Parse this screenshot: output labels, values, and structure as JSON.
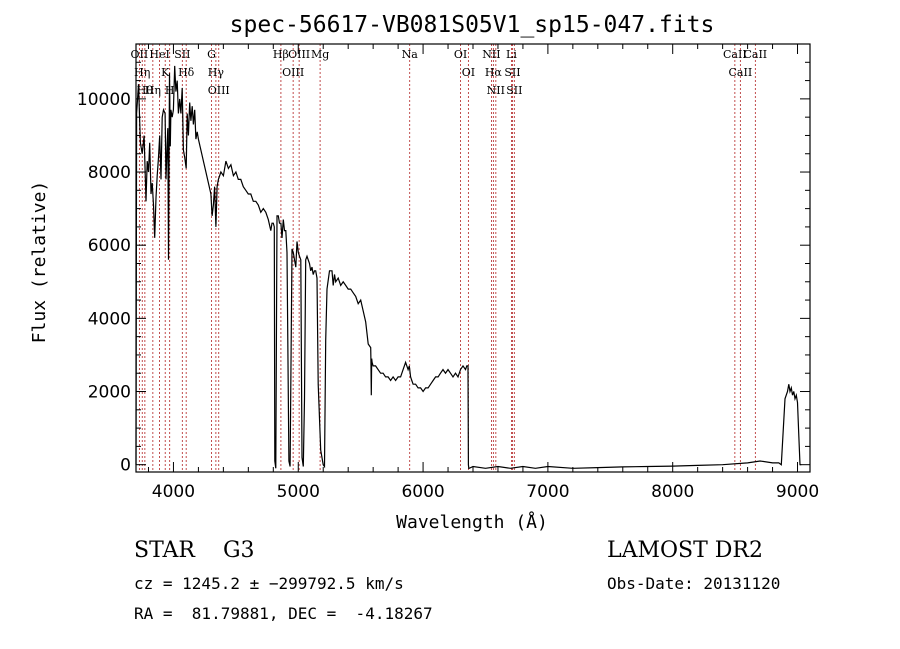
{
  "chart_data": {
    "type": "line",
    "title": "spec-56617-VB081S05V1_sp15-047.fits",
    "xlabel": "Wavelength (Å)",
    "ylabel": "Flux (relative)",
    "xlim": [
      3700,
      9100
    ],
    "ylim": [
      -200,
      11500
    ],
    "x_ticks": [
      4000,
      5000,
      6000,
      7000,
      8000,
      9000
    ],
    "y_ticks": [
      0,
      2000,
      4000,
      6000,
      8000,
      10000
    ],
    "grid": false,
    "series": [
      {
        "x": [
          3700,
          3705,
          3720,
          3735,
          3750,
          3765,
          3780,
          3790,
          3800,
          3810,
          3820,
          3830,
          3840,
          3850,
          3860,
          3870,
          3880,
          3890,
          3900,
          3910,
          3920,
          3933,
          3940,
          3950,
          3955,
          3960,
          3968,
          3975,
          3980,
          3990,
          4000,
          4010,
          4020,
          4030,
          4040,
          4050,
          4060,
          4070,
          4080,
          4090,
          4102,
          4110,
          4120,
          4130,
          4140,
          4150,
          4160,
          4170,
          4180,
          4190,
          4200,
          4220,
          4240,
          4260,
          4280,
          4300,
          4310,
          4320,
          4330,
          4340,
          4350,
          4360,
          4380,
          4400,
          4420,
          4440,
          4460,
          4480,
          4500,
          4520,
          4540,
          4560,
          4580,
          4600,
          4620,
          4640,
          4660,
          4680,
          4700,
          4720,
          4740,
          4760,
          4780,
          4790,
          4800,
          4808,
          4812,
          4820,
          4830,
          4840,
          4850,
          4861,
          4870,
          4880,
          4890,
          4900,
          4910,
          4925,
          4935,
          4950,
          4960,
          4970,
          4980,
          4990,
          5000,
          5010,
          5020,
          5030,
          5040,
          5050,
          5060,
          5070,
          5080,
          5090,
          5100,
          5110,
          5120,
          5130,
          5140,
          5150,
          5160,
          5180,
          5200,
          5210,
          5220,
          5230,
          5250,
          5270,
          5280,
          5290,
          5300,
          5320,
          5340,
          5360,
          5380,
          5400,
          5420,
          5440,
          5460,
          5480,
          5500,
          5520,
          5540,
          5560,
          5580,
          5582,
          5585,
          5588,
          5592,
          5600,
          5620,
          5640,
          5660,
          5680,
          5700,
          5720,
          5740,
          5760,
          5780,
          5800,
          5820,
          5840,
          5860,
          5880,
          5890,
          5900,
          5910,
          5920,
          5940,
          5960,
          5980,
          6000,
          6020,
          6040,
          6060,
          6080,
          6100,
          6120,
          6140,
          6160,
          6180,
          6200,
          6220,
          6240,
          6260,
          6280,
          6300,
          6320,
          6340,
          6350,
          6360,
          6363,
          6366,
          6370,
          6400,
          6500,
          6600,
          6700,
          6800,
          6900,
          7000,
          7200,
          7400,
          7600,
          7800,
          8000,
          8200,
          8400,
          8600,
          8700,
          8800,
          8850,
          8870,
          8900,
          8920,
          8930,
          8940,
          8950,
          8960,
          8970,
          8980,
          8990,
          9000,
          9010,
          9020,
          9030
        ],
        "y": [
          0,
          9600,
          10400,
          8800,
          8500,
          9000,
          7200,
          8300,
          8000,
          8800,
          7400,
          7700,
          7100,
          6200,
          7300,
          7900,
          8400,
          9000,
          7800,
          9500,
          9700,
          9600,
          7800,
          8800,
          9200,
          5600,
          10700,
          8700,
          9700,
          9500,
          9700,
          10900,
          10200,
          10500,
          9600,
          10000,
          9600,
          10300,
          8600,
          8400,
          8100,
          9600,
          9000,
          9900,
          9400,
          9800,
          9300,
          9700,
          8900,
          9100,
          8900,
          8600,
          8300,
          8000,
          7700,
          7400,
          6800,
          7100,
          7600,
          6500,
          7600,
          7800,
          8000,
          7900,
          8300,
          8100,
          8200,
          7900,
          8000,
          7800,
          7800,
          7600,
          7500,
          7400,
          7400,
          7200,
          7200,
          7100,
          6900,
          7000,
          6900,
          6700,
          6400,
          6600,
          6600,
          6500,
          100,
          -100,
          6800,
          6800,
          6600,
          6600,
          6200,
          6700,
          6400,
          6400,
          5800,
          100,
          -50,
          5900,
          5800,
          5600,
          5400,
          6100,
          5800,
          5700,
          5600,
          200,
          -50,
          1800,
          5600,
          5700,
          5600,
          5500,
          5300,
          5400,
          5200,
          5300,
          5300,
          5100,
          2200,
          400,
          0,
          -50,
          3400,
          4800,
          5300,
          5300,
          4900,
          5200,
          5000,
          5100,
          4900,
          5000,
          4900,
          4800,
          4800,
          4700,
          4600,
          4400,
          4500,
          4200,
          3900,
          3300,
          3200,
          2900,
          1900,
          2900,
          2800,
          2700,
          2700,
          2600,
          2500,
          2500,
          2400,
          2400,
          2300,
          2400,
          2300,
          2400,
          2400,
          2600,
          2800,
          2600,
          2700,
          2400,
          2300,
          2200,
          2200,
          2100,
          2100,
          2000,
          2100,
          2100,
          2200,
          2300,
          2400,
          2400,
          2500,
          2600,
          2500,
          2600,
          2500,
          2400,
          2500,
          2400,
          2600,
          2700,
          2600,
          2700,
          2700,
          0,
          -100,
          -100,
          -50,
          -100,
          -50,
          -100,
          -50,
          -100,
          -50,
          -100,
          -80,
          -60,
          -50,
          -40,
          -20,
          0,
          50,
          100,
          50,
          50,
          0,
          1800,
          2000,
          2200,
          2000,
          2100,
          1900,
          2000,
          1800,
          1900,
          1700,
          800,
          0,
          0
        ]
      }
    ],
    "line_markers": [
      {
        "wave": 3727,
        "label": "OII"
      },
      {
        "wave": 3750,
        "label": "Hη"
      },
      {
        "wave": 3771,
        "label": "Hθ"
      },
      {
        "wave": 3835,
        "label": "Hη"
      },
      {
        "wave": 3889,
        "label": "HeI"
      },
      {
        "wave": 3934,
        "label": "K"
      },
      {
        "wave": 3970,
        "label": "H"
      },
      {
        "wave": 4071,
        "label": "SII"
      },
      {
        "wave": 4102,
        "label": "Hδ"
      },
      {
        "wave": 4305,
        "label": "G"
      },
      {
        "wave": 4340,
        "label": "Hγ"
      },
      {
        "wave": 4363,
        "label": "OIII"
      },
      {
        "wave": 4861,
        "label": "Hβ"
      },
      {
        "wave": 4959,
        "label": "OIII"
      },
      {
        "wave": 5007,
        "label": "OIII"
      },
      {
        "wave": 5175,
        "label": "Mg"
      },
      {
        "wave": 5893,
        "label": "Na"
      },
      {
        "wave": 6300,
        "label": "OI"
      },
      {
        "wave": 6363,
        "label": "OI"
      },
      {
        "wave": 6548,
        "label": "NII"
      },
      {
        "wave": 6563,
        "label": "Hα"
      },
      {
        "wave": 6583,
        "label": "NII"
      },
      {
        "wave": 6708,
        "label": "Li"
      },
      {
        "wave": 6716,
        "label": "SII"
      },
      {
        "wave": 6731,
        "label": "SII"
      },
      {
        "wave": 8498,
        "label": "CaII"
      },
      {
        "wave": 8542,
        "label": "CaII"
      },
      {
        "wave": 8662,
        "label": "CaII"
      }
    ]
  },
  "info": {
    "class_label": "STAR    G3",
    "survey": "LAMOST DR2",
    "redshift_line": "cz = 1245.2 ± −299792.5 km/s",
    "obs_date": "Obs-Date: 20131120",
    "coords_line": "RA =  81.79881, DEC =  -4.18267"
  },
  "colors": {
    "spectrum": "#000000",
    "marker": "#b22222",
    "axes": "#000000"
  }
}
